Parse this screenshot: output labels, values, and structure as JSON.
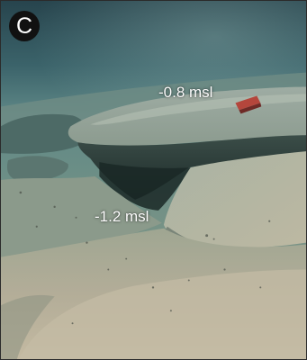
{
  "panel": {
    "letter": "C"
  },
  "annotations": {
    "upper_depth": "-0.8 msl",
    "lower_depth": "-1.2 msl"
  },
  "scene": {
    "description_colors": {
      "water_top": "#2f4f57",
      "water_mid": "#5b8385",
      "ledge_top": "#a7b2a6",
      "shadow": "#1e2e2c",
      "sand_near": "#b8b19d",
      "badge": "#111111",
      "text": "#ffffff"
    }
  }
}
